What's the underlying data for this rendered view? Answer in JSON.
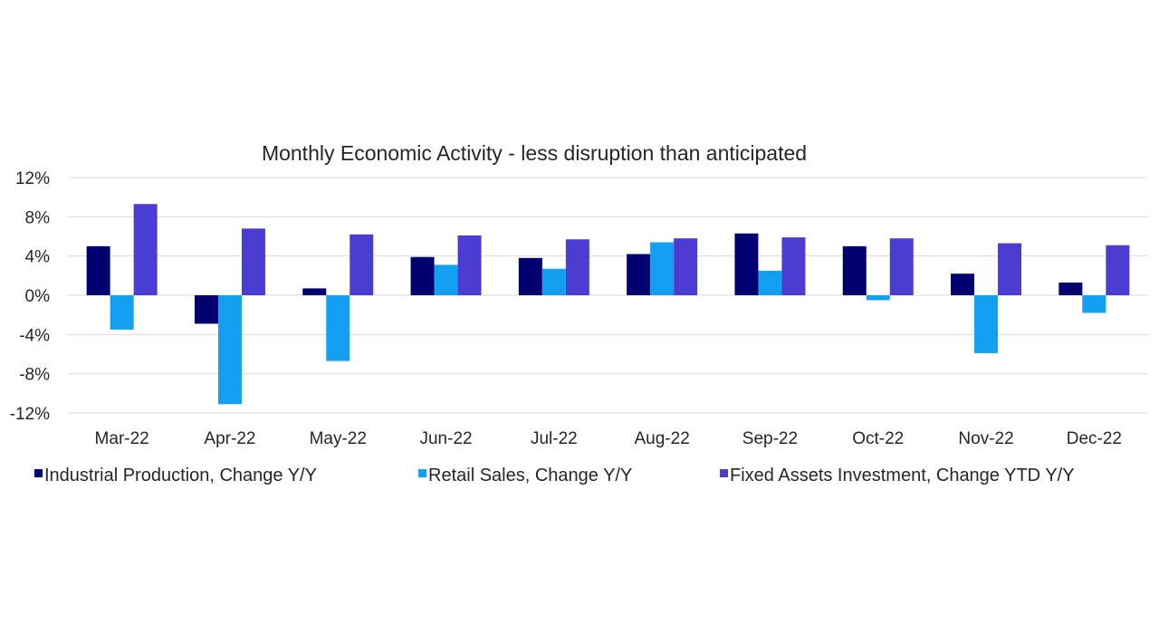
{
  "chart_data": {
    "type": "bar",
    "title": "Monthly Economic Activity - less disruption than anticipated",
    "categories": [
      "Mar-22",
      "Apr-22",
      "May-22",
      "Jun-22",
      "Jul-22",
      "Aug-22",
      "Sep-22",
      "Oct-22",
      "Nov-22",
      "Dec-22"
    ],
    "series": [
      {
        "name": "Industrial Production, Change Y/Y",
        "color": "#00006e",
        "values": [
          5.0,
          -2.9,
          0.7,
          3.9,
          3.8,
          4.2,
          6.3,
          5.0,
          2.2,
          1.3
        ]
      },
      {
        "name": "Retail Sales, Change Y/Y",
        "color": "#14a0f0",
        "values": [
          -3.5,
          -11.1,
          -6.7,
          3.1,
          2.7,
          5.4,
          2.5,
          -0.5,
          -5.9,
          -1.8
        ]
      },
      {
        "name": "Fixed Assets Investment, Change YTD Y/Y",
        "color": "#4b3cd2",
        "values": [
          9.3,
          6.8,
          6.2,
          6.1,
          5.7,
          5.8,
          5.9,
          5.8,
          5.3,
          5.1
        ]
      }
    ],
    "yticks": [
      "12%",
      "8%",
      "4%",
      "0%",
      "-4%",
      "-8%",
      "-12%"
    ],
    "ytick_values": [
      12,
      8,
      4,
      0,
      -4,
      -8,
      -12
    ],
    "ylim": [
      -12,
      12
    ],
    "xlabel": "",
    "ylabel": "",
    "grid": true,
    "legend_position": "bottom"
  }
}
